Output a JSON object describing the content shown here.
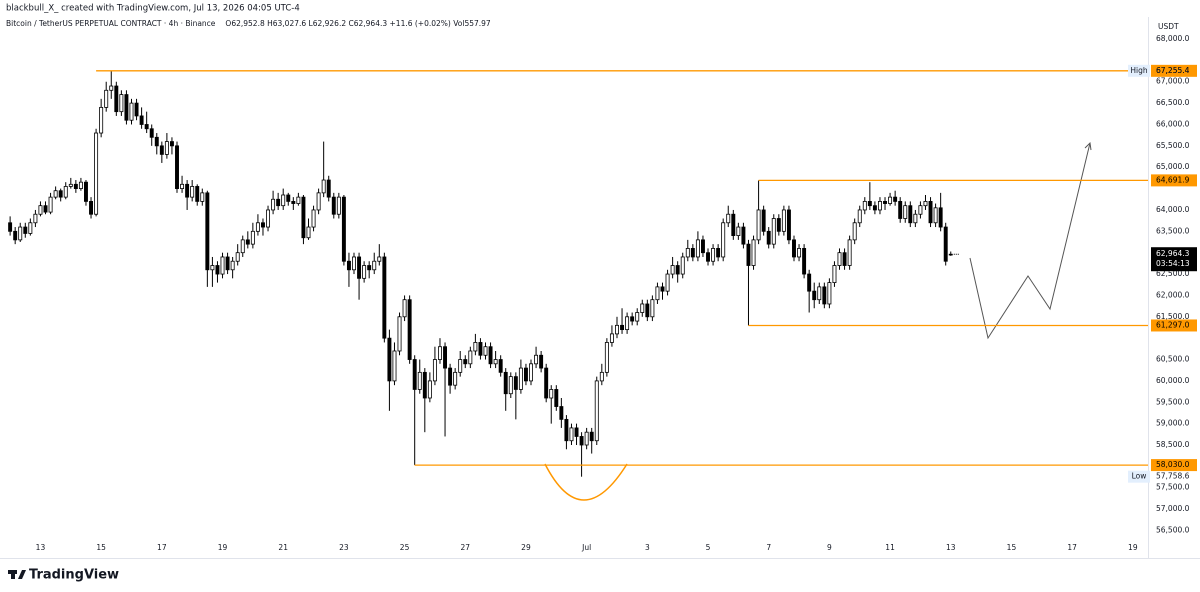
{
  "header": {
    "credit": "blackbull_X_ created with TradingView.com, Jul 13, 2026 04:05 UTC-4"
  },
  "footer": {
    "brand": "TradingView"
  },
  "chart_data": {
    "type": "candlestick",
    "title": "Bitcoin / TetherUS PERPETUAL CONTRACT · 4h · Binance",
    "legend_ohlc": "O62,952.8 H63,027.6 L62,926.2 C62,964.3 +11.6 (+0.02%) Vol557.97",
    "currency": "USDT",
    "up_color": "#ffffff",
    "down_color": "#000000",
    "ylim": [
      56090,
      68515
    ],
    "xlim": [
      -2,
      225
    ],
    "yticks": [
      {
        "value": 68000,
        "label": "68,000.0"
      },
      {
        "value": 67000,
        "label": "67,000.0"
      },
      {
        "value": 66500,
        "label": "66,500.0"
      },
      {
        "value": 66000,
        "label": "66,000.0"
      },
      {
        "value": 65500,
        "label": "65,500.0"
      },
      {
        "value": 65000,
        "label": "65,000.0"
      },
      {
        "value": 64000,
        "label": "64,000.0"
      },
      {
        "value": 63500,
        "label": "63,500.0"
      },
      {
        "value": 62500,
        "label": "62,500.0"
      },
      {
        "value": 62000,
        "label": "62,000.0"
      },
      {
        "value": 61500,
        "label": "61,500.0"
      },
      {
        "value": 60500,
        "label": "60,500.0"
      },
      {
        "value": 60000,
        "label": "60,000.0"
      },
      {
        "value": 59500,
        "label": "59,500.0"
      },
      {
        "value": 59000,
        "label": "59,000.0"
      },
      {
        "value": 58500,
        "label": "58,500.0"
      },
      {
        "value": 57500,
        "label": "57,500.0"
      },
      {
        "value": 57000,
        "label": "57,000.0"
      },
      {
        "value": 56500,
        "label": "56,500.0"
      }
    ],
    "xticks": [
      {
        "value": 6,
        "label": "13"
      },
      {
        "value": 18,
        "label": "15"
      },
      {
        "value": 30,
        "label": "17"
      },
      {
        "value": 42,
        "label": "19"
      },
      {
        "value": 54,
        "label": "21"
      },
      {
        "value": 66,
        "label": "23"
      },
      {
        "value": 78,
        "label": "25"
      },
      {
        "value": 90,
        "label": "27"
      },
      {
        "value": 102,
        "label": "29"
      },
      {
        "value": 114,
        "label": "Jul"
      },
      {
        "value": 126,
        "label": "3"
      },
      {
        "value": 138,
        "label": "5"
      },
      {
        "value": 150,
        "label": "7"
      },
      {
        "value": 162,
        "label": "9"
      },
      {
        "value": 174,
        "label": "11"
      },
      {
        "value": 186,
        "label": "13"
      },
      {
        "value": 198,
        "label": "15"
      },
      {
        "value": 210,
        "label": "17"
      },
      {
        "value": 222,
        "label": "19"
      }
    ],
    "levels": [
      {
        "value": 67255.4,
        "label": "67,255.4",
        "from": 17,
        "color": "#ff9800"
      },
      {
        "value": 64691.9,
        "label": "64,691.9",
        "from": 148,
        "color": "#ff9800"
      },
      {
        "value": 61297.0,
        "label": "61,297.0",
        "from": 146,
        "color": "#ff9800"
      },
      {
        "value": 58030.0,
        "label": "58,030.0",
        "from": 80,
        "color": "#ff9800"
      }
    ],
    "high": {
      "name": "High",
      "value": 67255.4,
      "label": "67,255.4"
    },
    "low": {
      "name": "Low",
      "value": 57758.6,
      "label": "57,758.6"
    },
    "last_price": {
      "value": 62964.3,
      "label": "62,964.3",
      "countdown": "03:54:13"
    },
    "ohlc": [
      [
        63700,
        63850,
        63400,
        63500
      ],
      [
        63500,
        63600,
        63200,
        63300
      ],
      [
        63300,
        63700,
        63250,
        63600
      ],
      [
        63600,
        63700,
        63350,
        63450
      ],
      [
        63450,
        63800,
        63400,
        63700
      ],
      [
        63700,
        64000,
        63600,
        63900
      ],
      [
        63900,
        64200,
        63850,
        64100
      ],
      [
        64100,
        64200,
        63900,
        63950
      ],
      [
        63950,
        64400,
        63900,
        64300
      ],
      [
        64300,
        64550,
        64250,
        64450
      ],
      [
        64450,
        64500,
        64200,
        64300
      ],
      [
        64300,
        64650,
        64250,
        64550
      ],
      [
        64550,
        64750,
        64500,
        64600
      ],
      [
        64600,
        64700,
        64400,
        64500
      ],
      [
        64500,
        64750,
        64450,
        64650
      ],
      [
        64650,
        64700,
        64100,
        64200
      ],
      [
        64200,
        64300,
        63800,
        63900
      ],
      [
        63900,
        65900,
        63850,
        65800
      ],
      [
        65800,
        66600,
        65700,
        66400
      ],
      [
        66400,
        67000,
        66300,
        66800
      ],
      [
        66800,
        67255.4,
        66600,
        66900
      ],
      [
        66900,
        67000,
        66200,
        66300
      ],
      [
        66300,
        66800,
        66200,
        66700
      ],
      [
        66700,
        66800,
        66000,
        66100
      ],
      [
        66100,
        66600,
        66000,
        66500
      ],
      [
        66500,
        66600,
        66100,
        66200
      ],
      [
        66200,
        66400,
        65900,
        66000
      ],
      [
        66000,
        66300,
        65800,
        65900
      ],
      [
        65900,
        66000,
        65500,
        65700
      ],
      [
        65700,
        65800,
        65300,
        65500
      ],
      [
        65500,
        65600,
        65100,
        65300
      ],
      [
        65300,
        65800,
        65200,
        65600
      ],
      [
        65600,
        65700,
        65300,
        65500
      ],
      [
        65500,
        65600,
        64400,
        64500
      ],
      [
        64500,
        64800,
        64400,
        64600
      ],
      [
        64600,
        64700,
        64000,
        64300
      ],
      [
        64300,
        64700,
        64200,
        64550
      ],
      [
        64550,
        64600,
        64100,
        64200
      ],
      [
        64200,
        64500,
        64100,
        64400
      ],
      [
        64400,
        64450,
        62200,
        62600
      ],
      [
        62600,
        62900,
        62200,
        62700
      ],
      [
        62700,
        62800,
        62300,
        62500
      ],
      [
        62500,
        63000,
        62400,
        62900
      ],
      [
        62900,
        63000,
        62500,
        62600
      ],
      [
        62600,
        62900,
        62400,
        62800
      ],
      [
        62800,
        63200,
        62700,
        63000
      ],
      [
        63000,
        63400,
        62900,
        63300
      ],
      [
        63300,
        63500,
        63100,
        63200
      ],
      [
        63200,
        63700,
        63100,
        63500
      ],
      [
        63500,
        63900,
        63400,
        63700
      ],
      [
        63700,
        63800,
        63400,
        63600
      ],
      [
        63600,
        64100,
        63500,
        64000
      ],
      [
        64000,
        64450,
        63900,
        64250
      ],
      [
        64250,
        64400,
        64000,
        64100
      ],
      [
        64100,
        64500,
        64000,
        64350
      ],
      [
        64350,
        64400,
        64100,
        64200
      ],
      [
        64200,
        64300,
        64000,
        64150
      ],
      [
        64150,
        64400,
        64100,
        64300
      ],
      [
        64300,
        64350,
        63200,
        63350
      ],
      [
        63350,
        63800,
        63300,
        63600
      ],
      [
        63600,
        64100,
        63500,
        64000
      ],
      [
        64000,
        64500,
        63900,
        64400
      ],
      [
        64400,
        65600,
        64300,
        64700
      ],
      [
        64700,
        64800,
        64200,
        64300
      ],
      [
        64300,
        64400,
        63800,
        63900
      ],
      [
        63900,
        64400,
        63800,
        64300
      ],
      [
        64300,
        64350,
        62700,
        62800
      ],
      [
        62800,
        63000,
        62200,
        62600
      ],
      [
        62600,
        63000,
        62500,
        62900
      ],
      [
        62900,
        63000,
        61900,
        62400
      ],
      [
        62400,
        62800,
        62300,
        62700
      ],
      [
        62700,
        62800,
        62400,
        62600
      ],
      [
        62600,
        63000,
        62500,
        62800
      ],
      [
        62800,
        63200,
        62700,
        62900
      ],
      [
        62900,
        63000,
        60900,
        61000
      ],
      [
        61000,
        61200,
        59300,
        60000
      ],
      [
        60000,
        60900,
        59900,
        60700
      ],
      [
        60700,
        61600,
        60600,
        61500
      ],
      [
        61500,
        62000,
        61400,
        61900
      ],
      [
        61900,
        62000,
        60400,
        60500
      ],
      [
        60500,
        60600,
        58030,
        59800
      ],
      [
        59800,
        60500,
        59700,
        60200
      ],
      [
        60200,
        60300,
        58800,
        59600
      ],
      [
        59600,
        60200,
        59500,
        60000
      ],
      [
        60000,
        60800,
        59900,
        60500
      ],
      [
        60500,
        61000,
        60400,
        60800
      ],
      [
        60800,
        60900,
        58700,
        60300
      ],
      [
        60300,
        60400,
        59700,
        59900
      ],
      [
        59900,
        60300,
        59800,
        60200
      ],
      [
        60200,
        60700,
        60100,
        60500
      ],
      [
        60500,
        60600,
        60300,
        60400
      ],
      [
        60400,
        60800,
        60300,
        60700
      ],
      [
        60700,
        61100,
        60600,
        60900
      ],
      [
        60900,
        61000,
        60500,
        60600
      ],
      [
        60600,
        60900,
        60500,
        60800
      ],
      [
        60800,
        60900,
        60300,
        60400
      ],
      [
        60400,
        60700,
        60300,
        60500
      ],
      [
        60500,
        60600,
        60100,
        60200
      ],
      [
        60200,
        60300,
        59300,
        59700
      ],
      [
        59700,
        60200,
        59600,
        60100
      ],
      [
        60100,
        60200,
        59100,
        59800
      ],
      [
        59800,
        60500,
        59700,
        60300
      ],
      [
        60300,
        60400,
        59900,
        60000
      ],
      [
        60000,
        60500,
        59900,
        60400
      ],
      [
        60400,
        60800,
        60300,
        60600
      ],
      [
        60600,
        60700,
        60200,
        60300
      ],
      [
        60300,
        60400,
        59500,
        59600
      ],
      [
        59600,
        59900,
        59000,
        59800
      ],
      [
        59800,
        59900,
        59300,
        59400
      ],
      [
        59400,
        59600,
        58900,
        59100
      ],
      [
        59100,
        59200,
        58400,
        58600
      ],
      [
        58600,
        59000,
        58500,
        58900
      ],
      [
        58900,
        59000,
        58500,
        58700
      ],
      [
        58700,
        58800,
        57758.6,
        58500
      ],
      [
        58500,
        58900,
        58400,
        58800
      ],
      [
        58800,
        58900,
        58300,
        58600
      ],
      [
        58600,
        60100,
        58500,
        60000
      ],
      [
        60000,
        60400,
        59900,
        60200
      ],
      [
        60200,
        61000,
        60100,
        60900
      ],
      [
        60900,
        61300,
        60800,
        61100
      ],
      [
        61100,
        61500,
        61000,
        61300
      ],
      [
        61300,
        61700,
        61100,
        61200
      ],
      [
        61200,
        61600,
        61100,
        61500
      ],
      [
        61500,
        61600,
        61300,
        61400
      ],
      [
        61400,
        61700,
        61300,
        61600
      ],
      [
        61600,
        61900,
        61500,
        61800
      ],
      [
        61800,
        61900,
        61400,
        61500
      ],
      [
        61500,
        62000,
        61400,
        61900
      ],
      [
        61900,
        62300,
        61800,
        62200
      ],
      [
        62200,
        62300,
        61900,
        62100
      ],
      [
        62100,
        62600,
        62000,
        62500
      ],
      [
        62500,
        62900,
        62400,
        62700
      ],
      [
        62700,
        62800,
        62300,
        62500
      ],
      [
        62500,
        63000,
        62400,
        62900
      ],
      [
        62900,
        63300,
        62800,
        63100
      ],
      [
        63100,
        63200,
        62800,
        62900
      ],
      [
        62900,
        63500,
        62800,
        63300
      ],
      [
        63300,
        63400,
        62900,
        63000
      ],
      [
        63000,
        63100,
        62700,
        62800
      ],
      [
        62800,
        63200,
        62700,
        63100
      ],
      [
        63100,
        63200,
        62800,
        62900
      ],
      [
        62900,
        63800,
        62800,
        63700
      ],
      [
        63700,
        64100,
        63600,
        63900
      ],
      [
        63900,
        64000,
        63300,
        63400
      ],
      [
        63400,
        63700,
        63300,
        63600
      ],
      [
        63600,
        63700,
        63100,
        63200
      ],
      [
        63200,
        63300,
        61297,
        62700
      ],
      [
        62700,
        63400,
        62600,
        63300
      ],
      [
        63300,
        64691.9,
        63200,
        64000
      ],
      [
        64000,
        64100,
        63400,
        63500
      ],
      [
        63500,
        63600,
        63100,
        63200
      ],
      [
        63200,
        63900,
        63100,
        63800
      ],
      [
        63800,
        63900,
        63400,
        63500
      ],
      [
        63500,
        64100,
        63400,
        64000
      ],
      [
        64000,
        64100,
        63200,
        63300
      ],
      [
        63300,
        63400,
        62800,
        62900
      ],
      [
        62900,
        63200,
        62800,
        63100
      ],
      [
        63100,
        63200,
        62400,
        62500
      ],
      [
        62500,
        62600,
        61600,
        62100
      ],
      [
        62100,
        62300,
        61700,
        61900
      ],
      [
        61900,
        62300,
        61800,
        62200
      ],
      [
        62200,
        62300,
        61700,
        61800
      ],
      [
        61800,
        62400,
        61700,
        62300
      ],
      [
        62300,
        62800,
        62200,
        62700
      ],
      [
        62700,
        63100,
        62600,
        63000
      ],
      [
        63000,
        63100,
        62600,
        62700
      ],
      [
        62700,
        63400,
        62600,
        63300
      ],
      [
        63300,
        63800,
        63200,
        63700
      ],
      [
        63700,
        64100,
        63600,
        64000
      ],
      [
        64000,
        64300,
        63900,
        64200
      ],
      [
        64200,
        64650,
        64000,
        64100
      ],
      [
        64100,
        64200,
        63900,
        64000
      ],
      [
        64000,
        64300,
        63900,
        64200
      ],
      [
        64200,
        64300,
        64000,
        64150
      ],
      [
        64150,
        64400,
        64100,
        64300
      ],
      [
        64300,
        64450,
        64100,
        64200
      ],
      [
        64200,
        64300,
        63700,
        63800
      ],
      [
        63800,
        64200,
        63700,
        64100
      ],
      [
        64100,
        64200,
        63600,
        63700
      ],
      [
        63700,
        64000,
        63600,
        63900
      ],
      [
        63900,
        64200,
        63800,
        64100
      ],
      [
        64100,
        64350,
        64000,
        64200
      ],
      [
        64200,
        64300,
        63600,
        63700
      ],
      [
        63700,
        64150,
        63600,
        64050
      ],
      [
        64050,
        64400,
        63500,
        63600
      ],
      [
        63600,
        63700,
        62700,
        62800
      ],
      [
        62952.8,
        63027.6,
        62926.2,
        62964.3
      ]
    ]
  }
}
